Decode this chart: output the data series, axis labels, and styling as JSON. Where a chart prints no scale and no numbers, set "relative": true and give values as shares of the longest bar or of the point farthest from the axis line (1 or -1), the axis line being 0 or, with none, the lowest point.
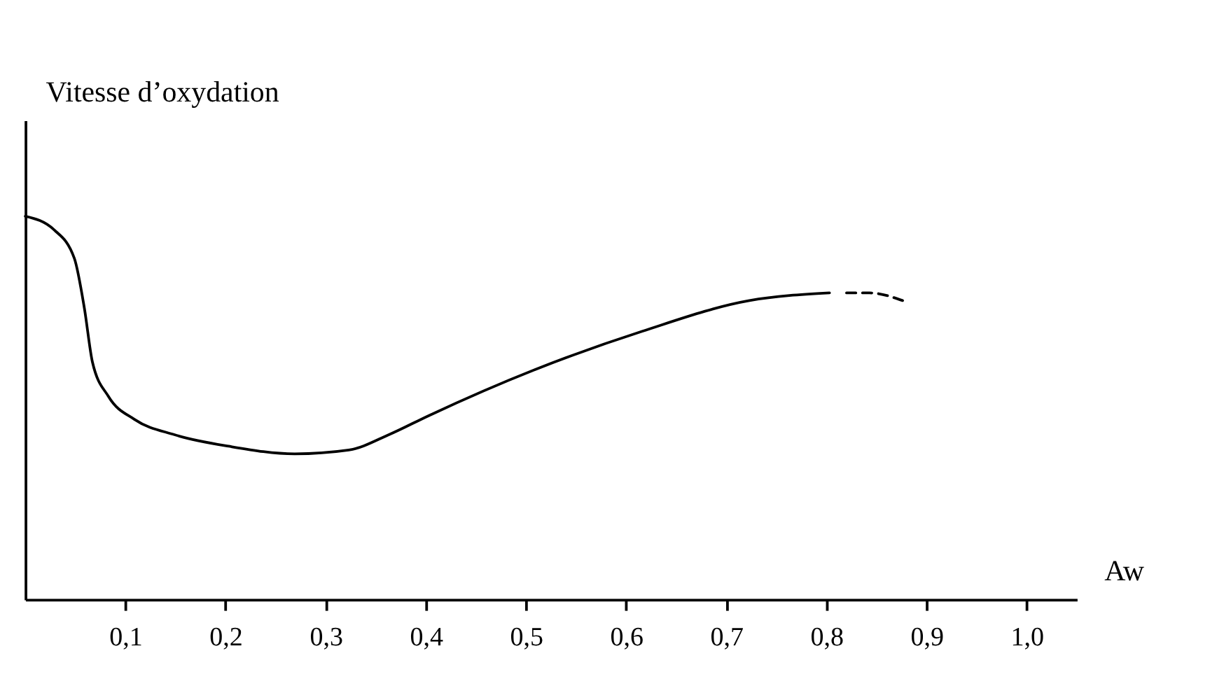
{
  "chart_data": {
    "type": "line",
    "relative": true,
    "xlabel": "Aw",
    "ylabel": "Vitesse d’oxydation",
    "xlim": [
      0,
      1.05
    ],
    "xticks": [
      {
        "value": 0.1,
        "label": "0,1"
      },
      {
        "value": 0.2,
        "label": "0,2"
      },
      {
        "value": 0.3,
        "label": "0,3"
      },
      {
        "value": 0.4,
        "label": "0,4"
      },
      {
        "value": 0.5,
        "label": "0,5"
      },
      {
        "value": 0.6,
        "label": "0,6"
      },
      {
        "value": 0.7,
        "label": "0,7"
      },
      {
        "value": 0.8,
        "label": "0,8"
      },
      {
        "value": 0.9,
        "label": "0,9"
      },
      {
        "value": 1.0,
        "label": "1,0"
      }
    ],
    "grid": false,
    "marker": "none",
    "series": [
      {
        "color": "#000000",
        "line_style": "solid",
        "x": [
          0,
          0.029,
          0.049,
          0.059,
          0.067,
          0.083,
          0.109,
          0.149,
          0.203,
          0.269,
          0.323,
          0.363,
          0.403,
          0.509,
          0.616,
          0.723,
          0.803
        ],
        "values": [
          1.0,
          0.964,
          0.89,
          0.76,
          0.62,
          0.53,
          0.47,
          0.43,
          0.4,
          0.38,
          0.39,
          0.43,
          0.48,
          0.6,
          0.7,
          0.78,
          0.8
        ]
      },
      {
        "color": "#000000",
        "line_style": "dashed",
        "x": [
          0.82,
          0.843,
          0.876
        ],
        "values": [
          0.8,
          0.8,
          0.78
        ]
      }
    ]
  }
}
